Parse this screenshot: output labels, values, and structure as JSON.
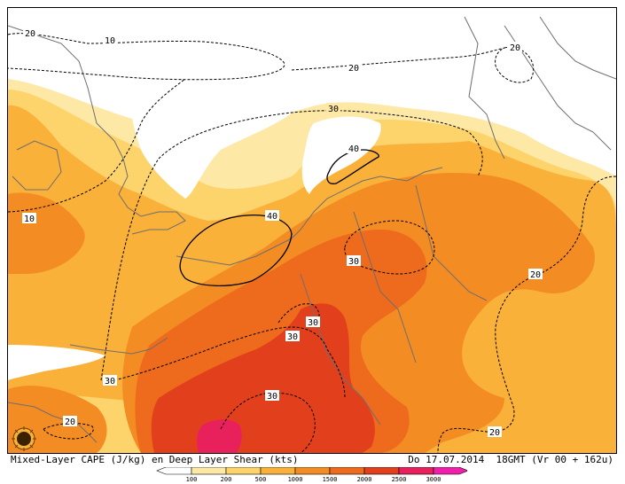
{
  "caption": {
    "left": "Mixed-Layer CAPE (J/kg) en Deep Layer Shear (kts)",
    "right": "Do 17.07.2014  18GMT (Vr 00 + 162u)"
  },
  "legend": {
    "ticks": [
      "100",
      "200",
      "500",
      "1000",
      "1500",
      "2000",
      "2500",
      "3000"
    ],
    "colors": [
      "#ffffff",
      "#fde8a6",
      "#fdd36c",
      "#f9b13a",
      "#f48c24",
      "#ee6a1c",
      "#e23f1c",
      "#e8215c",
      "#ee1faa"
    ]
  },
  "shear_labels": [
    "20",
    "10",
    "20",
    "20",
    "30",
    "40",
    "10",
    "40",
    "30",
    "20",
    "30",
    "30",
    "30",
    "30",
    "20",
    "20"
  ],
  "colors": {
    "cape_lt100": "#ffffff",
    "cape_100": "#fde8a6",
    "cape_200": "#fdd36c",
    "cape_500": "#f9b13a",
    "cape_1000": "#f48c24",
    "cape_1500": "#ee6a1c",
    "cape_2000": "#e23f1c",
    "cape_2500": "#e8215c",
    "coastline": "#6e6e6e",
    "contour": "#000000"
  },
  "icons": {
    "logo": "sun-logo-icon"
  }
}
